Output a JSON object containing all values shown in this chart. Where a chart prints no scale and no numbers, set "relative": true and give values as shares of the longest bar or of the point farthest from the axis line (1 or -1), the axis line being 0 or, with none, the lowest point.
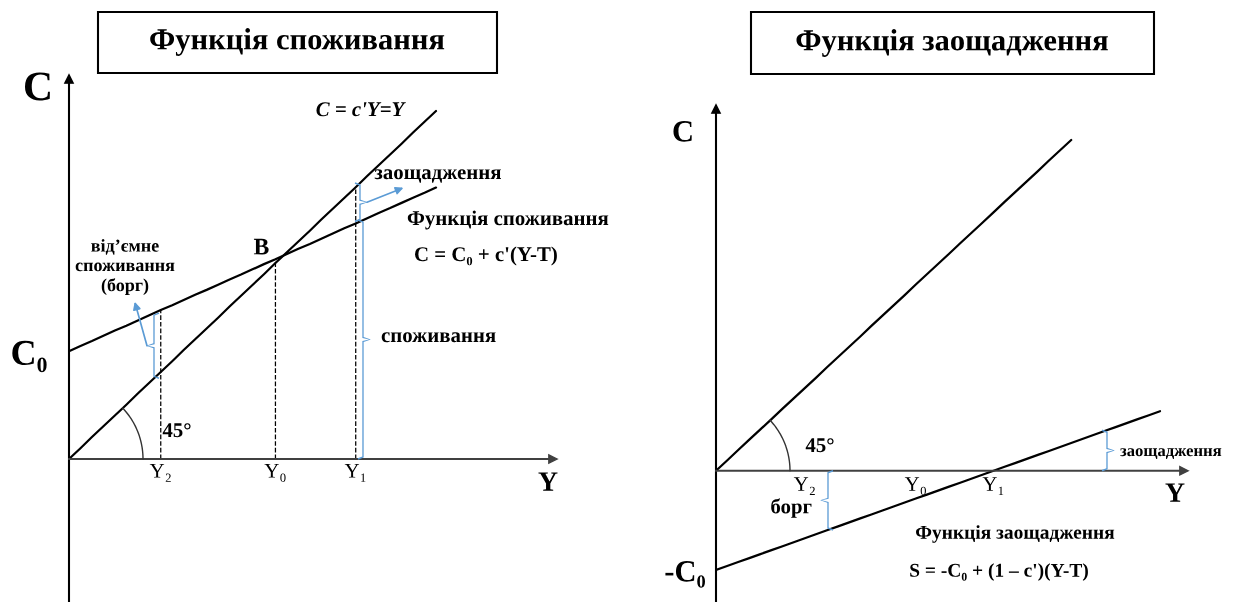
{
  "chart_data": [
    {
      "type": "line",
      "title": "Функція споживання",
      "xlabel": "Y",
      "ylabel": "C",
      "relative": true,
      "line_style": "solid",
      "categories": [
        null,
        null,
        null,
        null,
        null,
        null,
        null,
        null,
        "Y₂",
        null,
        null,
        null,
        null,
        null,
        null,
        null,
        null,
        null,
        "Y₀",
        null,
        null,
        null,
        null,
        null,
        null,
        "Y₁",
        null,
        null,
        null,
        null,
        null,
        null,
        null
      ],
      "series": [
        {
          "color": "#000000",
          "values": [
            0,
            0.031,
            0.063,
            0.094,
            0.125,
            0.156,
            0.188,
            0.219,
            0.25,
            0.281,
            0.313,
            0.344,
            0.375,
            0.406,
            0.438,
            0.469,
            0.5,
            0.531,
            0.563,
            0.594,
            0.625,
            0.656,
            0.688,
            0.719,
            0.75,
            0.781,
            0.813,
            0.844,
            0.875,
            0.906,
            0.938,
            0.969,
            1
          ]
        },
        {
          "color": "#000000",
          "values": [
            0.31,
            0.325,
            0.339,
            0.354,
            0.369,
            0.383,
            0.398,
            0.413,
            0.428,
            0.442,
            0.457,
            0.472,
            0.486,
            0.501,
            0.516,
            0.53,
            0.545,
            0.56,
            0.574,
            0.589,
            0.604,
            0.618,
            0.633,
            0.648,
            0.663,
            0.677,
            0.692,
            0.707,
            0.721,
            0.736,
            0.751,
            0.765,
            0.78
          ]
        },
        {
          "color": "#000000",
          "line_style": "dashed",
          "x": [
            "Y₂",
            "Y₂"
          ],
          "values": [
            0,
            0.43
          ]
        },
        {
          "color": "#000000",
          "line_style": "dashed",
          "x": [
            "Y₀",
            "Y₀"
          ],
          "values": [
            0,
            0.57
          ]
        },
        {
          "color": "#000000",
          "line_style": "dashed",
          "x": [
            "Y₁",
            "Y₁"
          ],
          "values": [
            0,
            0.78
          ]
        }
      ],
      "annotations": [
        "C = c'Y=Y",
        "Функція споживання",
        "C = C₀ + c'(Y-T)",
        "45°",
        {
          "text": "B",
          "x": "Y₀",
          "y": 0.57
        },
        "від’ємне\nспоживання\n(борг)",
        "заощадження",
        "споживання",
        "C₀"
      ]
    },
    {
      "type": "line",
      "title": "Функція заощадження",
      "xlabel": "Y",
      "ylabel": "C",
      "relative": true,
      "line_style": "solid",
      "categories": [
        null,
        null,
        null,
        null,
        null,
        null,
        null,
        null,
        "Y₂",
        null,
        null,
        null,
        null,
        null,
        null,
        null,
        null,
        null,
        "Y₀",
        null,
        null,
        null,
        null,
        null,
        null,
        "Y₁",
        null,
        null,
        null,
        null,
        null,
        null,
        null,
        null,
        null,
        null,
        null,
        null,
        null,
        null,
        null
      ],
      "series": [
        {
          "color": "#000000",
          "values": [
            0,
            0.031,
            0.063,
            0.094,
            0.125,
            0.156,
            0.188,
            0.219,
            0.25,
            0.281,
            0.313,
            0.344,
            0.375,
            0.406,
            0.438,
            0.469,
            0.5,
            0.531,
            0.563,
            0.594,
            0.625,
            0.656,
            0.688,
            0.719,
            0.75,
            0.781,
            0.813,
            0.844,
            0.875,
            0.906,
            0.938,
            0.969,
            1,
            null,
            null,
            null,
            null,
            null,
            null,
            null,
            null
          ]
        },
        {
          "color": "#000000",
          "values": [
            -0.3,
            -0.288,
            -0.276,
            -0.264,
            -0.252,
            -0.24,
            -0.228,
            -0.216,
            -0.204,
            -0.192,
            -0.18,
            -0.168,
            -0.156,
            -0.144,
            -0.132,
            -0.12,
            -0.108,
            -0.096,
            -0.084,
            -0.072,
            -0.06,
            -0.048,
            -0.036,
            -0.024,
            -0.012,
            0,
            0.012,
            0.024,
            0.036,
            0.048,
            0.06,
            0.072,
            0.084,
            0.096,
            0.108,
            0.12,
            0.132,
            0.144,
            0.156,
            0.168,
            0.18
          ]
        }
      ],
      "annotations": [
        "45°",
        "Функція заощадження",
        "S = -C₀ + (1 – c')(Y-T)",
        "борг",
        "заощадження",
        "-C₀"
      ]
    }
  ]
}
